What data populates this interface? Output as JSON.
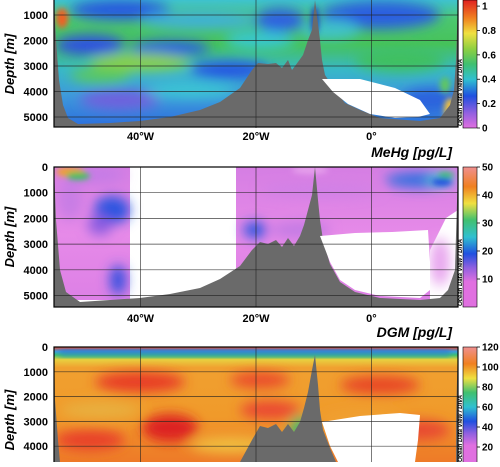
{
  "chart_data": [
    {
      "type": "heatmap",
      "title": "",
      "xlabel": "",
      "ylabel": "Depth [m]",
      "y_ticks": [
        "1000",
        "2000",
        "3000",
        "4000",
        "5000"
      ],
      "x_ticks": [
        "40°W",
        "20°W",
        "0°"
      ],
      "ylim": [
        5600,
        0
      ],
      "xlim": [
        -55,
        15
      ],
      "colorbar": {
        "ticks": [
          "1",
          "0.8",
          "0.6",
          "0.4",
          "0.2",
          "0"
        ],
        "range": [
          0,
          1.05
        ]
      },
      "credit": "Ocean Data View / DIVA"
    },
    {
      "type": "heatmap",
      "title": "MeHg [pg/L]",
      "xlabel": "",
      "ylabel": "Depth [m]",
      "y_ticks": [
        "0",
        "1000",
        "2000",
        "3000",
        "4000",
        "5000"
      ],
      "x_ticks": [
        "40°W",
        "20°W",
        "0°"
      ],
      "ylim": [
        5600,
        0
      ],
      "xlim": [
        -55,
        15
      ],
      "colorbar": {
        "ticks": [
          "50",
          "40",
          "30",
          "20",
          "10"
        ],
        "range": [
          0,
          50
        ]
      },
      "credit": "Ocean Data View / DIVA"
    },
    {
      "type": "heatmap",
      "title": "DGM [pg/L]",
      "xlabel": "",
      "ylabel": "Depth [m]",
      "y_ticks": [
        "0",
        "1000",
        "2000",
        "3000",
        "4000"
      ],
      "x_ticks": [],
      "ylim": [
        5600,
        0
      ],
      "xlim": [
        -55,
        15
      ],
      "colorbar": {
        "ticks": [
          "120",
          "100",
          "80",
          "60",
          "40",
          "20"
        ],
        "range": [
          0,
          120
        ]
      },
      "credit": "Ocean Data View / DIVA"
    }
  ]
}
